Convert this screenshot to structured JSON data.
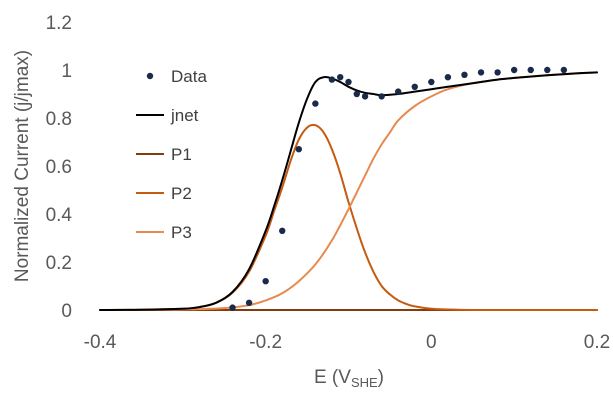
{
  "chart_data": {
    "type": "line",
    "title": "",
    "xlabel": "E (V",
    "xlabel_sub": "SHE",
    "xlabel_close": ")",
    "ylabel": "Normalized Current (j/jmax)",
    "xlim": [
      -0.4,
      0.2
    ],
    "ylim": [
      0,
      1.2
    ],
    "x_ticks": [
      -0.4,
      -0.2,
      0,
      0.2
    ],
    "x_tick_labels": [
      "-0.4",
      "-0.2",
      "0",
      "0.2"
    ],
    "y_ticks": [
      0,
      0.2,
      0.4,
      0.6,
      0.8,
      1,
      1.2
    ],
    "y_tick_labels": [
      "0",
      "0.2",
      "0.4",
      "0.6",
      "0.8",
      "1",
      "1.2"
    ],
    "grid": false,
    "legend_position": "left, inside plot",
    "series": [
      {
        "name": "Data",
        "kind": "scatter",
        "color": "#1b2a4a",
        "x": [
          -0.24,
          -0.22,
          -0.2,
          -0.18,
          -0.16,
          -0.14,
          -0.12,
          -0.11,
          -0.1,
          -0.09,
          -0.08,
          -0.06,
          -0.04,
          -0.02,
          0.0,
          0.02,
          0.04,
          0.06,
          0.08,
          0.1,
          0.12,
          0.14,
          0.16
        ],
        "y": [
          0.01,
          0.03,
          0.12,
          0.33,
          0.67,
          0.86,
          0.96,
          0.97,
          0.95,
          0.9,
          0.89,
          0.89,
          0.91,
          0.93,
          0.95,
          0.97,
          0.98,
          0.99,
          0.99,
          1.0,
          1.0,
          1.0,
          1.0
        ]
      },
      {
        "name": "jnet",
        "kind": "line",
        "color": "#000000",
        "x": [
          -0.4,
          -0.35,
          -0.3,
          -0.28,
          -0.26,
          -0.24,
          -0.22,
          -0.2,
          -0.19,
          -0.18,
          -0.17,
          -0.16,
          -0.15,
          -0.14,
          -0.13,
          -0.12,
          -0.11,
          -0.1,
          -0.09,
          -0.08,
          -0.07,
          -0.06,
          -0.04,
          -0.02,
          0.0,
          0.02,
          0.05,
          0.08,
          0.11,
          0.14,
          0.17,
          0.2
        ],
        "y": [
          0.0,
          0.001,
          0.005,
          0.012,
          0.03,
          0.075,
          0.17,
          0.33,
          0.43,
          0.54,
          0.66,
          0.78,
          0.88,
          0.95,
          0.97,
          0.965,
          0.95,
          0.93,
          0.915,
          0.905,
          0.9,
          0.895,
          0.9,
          0.91,
          0.92,
          0.93,
          0.945,
          0.96,
          0.97,
          0.978,
          0.985,
          0.99
        ]
      },
      {
        "name": "P1",
        "kind": "line",
        "color": "#843c0c",
        "x": [
          -0.4,
          -0.2,
          0.0,
          0.2
        ],
        "y": [
          0.0,
          0.0,
          0.0,
          0.0
        ]
      },
      {
        "name": "P2",
        "kind": "line",
        "color": "#c55a11",
        "x": [
          -0.4,
          -0.35,
          -0.3,
          -0.28,
          -0.26,
          -0.24,
          -0.22,
          -0.2,
          -0.19,
          -0.18,
          -0.17,
          -0.16,
          -0.15,
          -0.14,
          -0.13,
          -0.12,
          -0.11,
          -0.1,
          -0.09,
          -0.08,
          -0.07,
          -0.06,
          -0.05,
          -0.04,
          -0.03,
          -0.02,
          0.0,
          0.02,
          0.05,
          0.1,
          0.2
        ],
        "y": [
          0.0,
          0.001,
          0.005,
          0.012,
          0.03,
          0.072,
          0.16,
          0.31,
          0.41,
          0.51,
          0.62,
          0.71,
          0.76,
          0.77,
          0.74,
          0.67,
          0.57,
          0.45,
          0.34,
          0.24,
          0.16,
          0.1,
          0.065,
          0.04,
          0.025,
          0.015,
          0.005,
          0.002,
          0.0,
          0.0,
          0.0
        ]
      },
      {
        "name": "P3",
        "kind": "line",
        "color": "#e68a4f",
        "x": [
          -0.4,
          -0.3,
          -0.25,
          -0.22,
          -0.2,
          -0.18,
          -0.16,
          -0.14,
          -0.12,
          -0.1,
          -0.09,
          -0.08,
          -0.07,
          -0.06,
          -0.05,
          -0.04,
          -0.02,
          0.0,
          0.02,
          0.05,
          0.08,
          0.11,
          0.14,
          0.17,
          0.2
        ],
        "y": [
          0.0,
          0.002,
          0.008,
          0.02,
          0.04,
          0.07,
          0.12,
          0.19,
          0.29,
          0.42,
          0.49,
          0.56,
          0.63,
          0.69,
          0.74,
          0.79,
          0.85,
          0.89,
          0.92,
          0.945,
          0.96,
          0.97,
          0.978,
          0.984,
          0.99
        ]
      }
    ]
  }
}
